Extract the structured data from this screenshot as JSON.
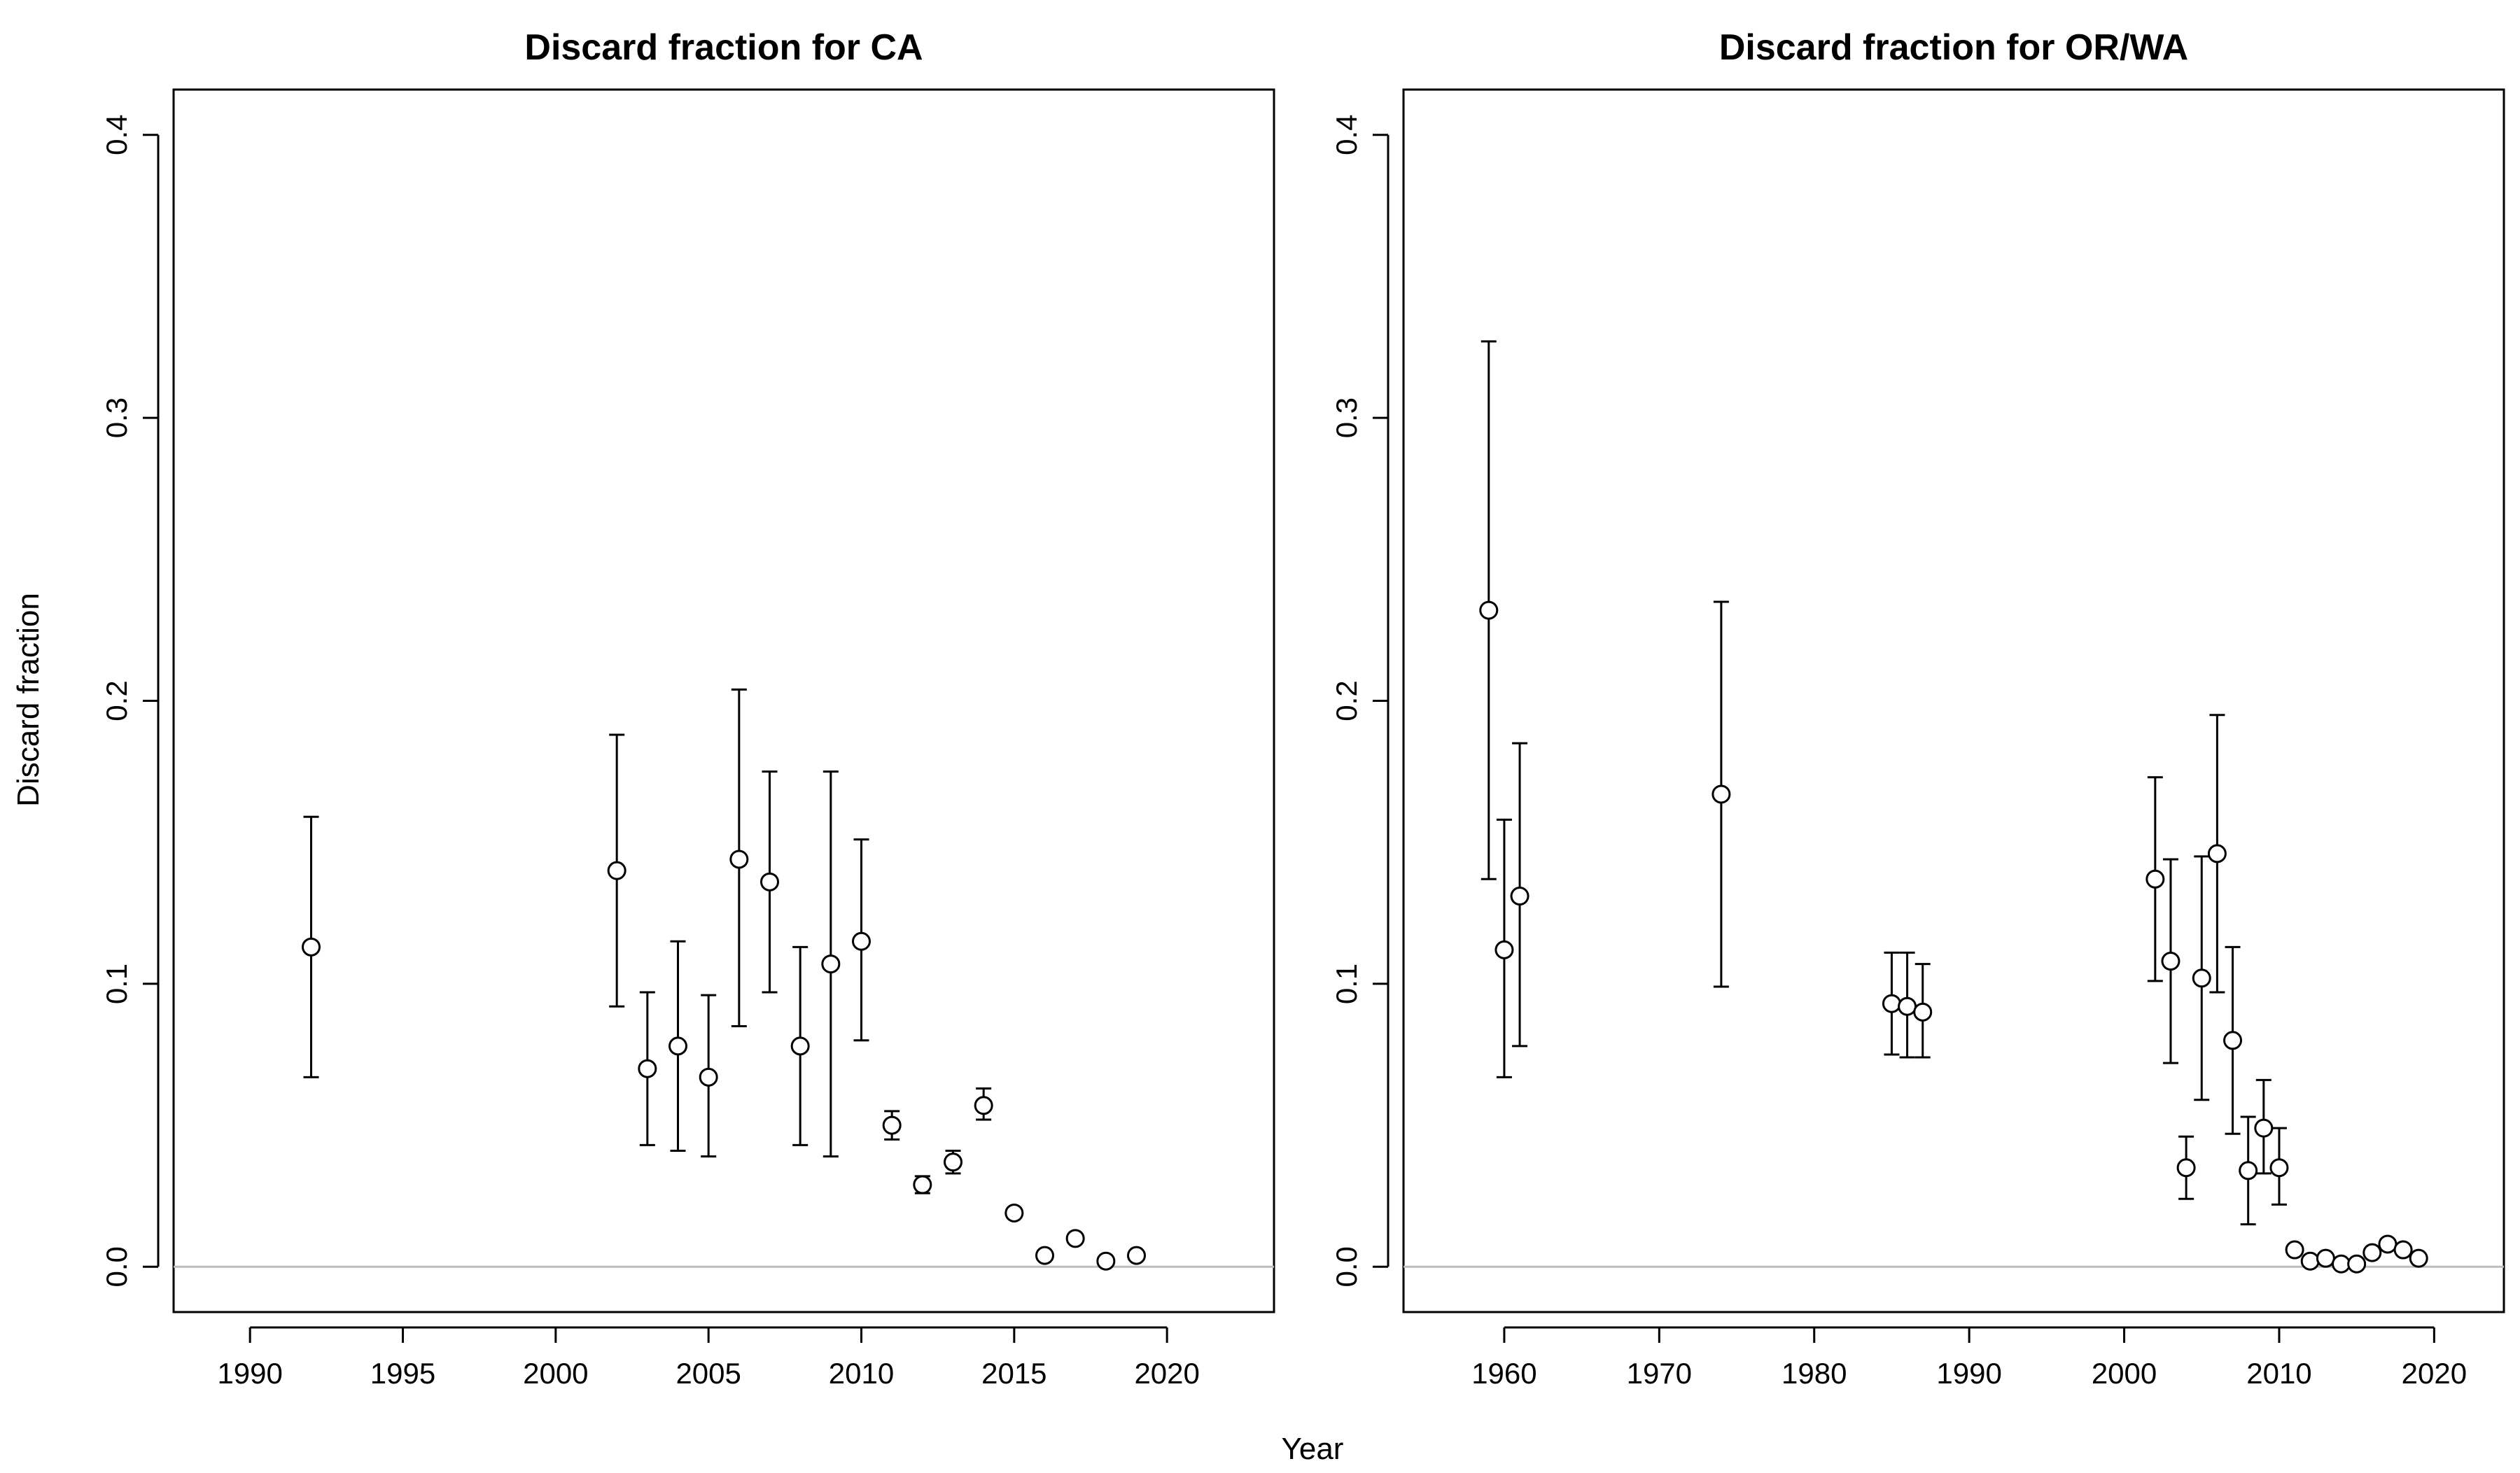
{
  "chart_data": [
    {
      "type": "scatter",
      "title": "Discard fraction for CA",
      "xlabel": "Year",
      "ylabel": "Discard fraction",
      "xlim": [
        1987.5,
        2023.5
      ],
      "ylim": [
        -0.016,
        0.416
      ],
      "xticks": [
        1990,
        1995,
        2000,
        2005,
        2010,
        2015,
        2020
      ],
      "xtick_labels": [
        "1990",
        "1995",
        "2000",
        "2005",
        "2010",
        "2015",
        "2020"
      ],
      "yticks": [
        0.0,
        0.1,
        0.2,
        0.3,
        0.4
      ],
      "ytick_labels": [
        "0.0",
        "0.1",
        "0.2",
        "0.3",
        "0.4"
      ],
      "reference_line_y": 0.0,
      "reference_line_color": "#bdbdbd",
      "grid": false,
      "marker": "open-circle",
      "error_bars": true,
      "points": [
        {
          "x": 1992,
          "y": 0.113,
          "lo": 0.067,
          "hi": 0.159
        },
        {
          "x": 2002,
          "y": 0.14,
          "lo": 0.092,
          "hi": 0.188
        },
        {
          "x": 2003,
          "y": 0.07,
          "lo": 0.043,
          "hi": 0.097
        },
        {
          "x": 2004,
          "y": 0.078,
          "lo": 0.041,
          "hi": 0.115
        },
        {
          "x": 2005,
          "y": 0.067,
          "lo": 0.039,
          "hi": 0.096
        },
        {
          "x": 2006,
          "y": 0.144,
          "lo": 0.085,
          "hi": 0.204
        },
        {
          "x": 2007,
          "y": 0.136,
          "lo": 0.097,
          "hi": 0.175
        },
        {
          "x": 2008,
          "y": 0.078,
          "lo": 0.043,
          "hi": 0.113
        },
        {
          "x": 2009,
          "y": 0.107,
          "lo": 0.039,
          "hi": 0.175
        },
        {
          "x": 2010,
          "y": 0.115,
          "lo": 0.08,
          "hi": 0.151
        },
        {
          "x": 2011,
          "y": 0.05,
          "lo": 0.045,
          "hi": 0.055
        },
        {
          "x": 2012,
          "y": 0.029,
          "lo": 0.026,
          "hi": 0.032
        },
        {
          "x": 2013,
          "y": 0.037,
          "lo": 0.033,
          "hi": 0.041
        },
        {
          "x": 2014,
          "y": 0.057,
          "lo": 0.052,
          "hi": 0.063
        },
        {
          "x": 2015,
          "y": 0.019
        },
        {
          "x": 2016,
          "y": 0.004
        },
        {
          "x": 2017,
          "y": 0.01
        },
        {
          "x": 2018,
          "y": 0.002
        },
        {
          "x": 2019,
          "y": 0.004
        }
      ]
    },
    {
      "type": "scatter",
      "title": "Discard fraction for OR/WA",
      "xlabel": "Year",
      "ylabel": "",
      "xlim": [
        1953.5,
        2024.5
      ],
      "ylim": [
        -0.016,
        0.416
      ],
      "xticks": [
        1960,
        1970,
        1980,
        1990,
        2000,
        2010,
        2020
      ],
      "xtick_labels": [
        "1960",
        "1970",
        "1980",
        "1990",
        "2000",
        "2010",
        "2020"
      ],
      "yticks": [
        0.0,
        0.1,
        0.2,
        0.3,
        0.4
      ],
      "ytick_labels": [
        "0.0",
        "0.1",
        "0.2",
        "0.3",
        "0.4"
      ],
      "reference_line_y": 0.0,
      "reference_line_color": "#bdbdbd",
      "grid": false,
      "marker": "open-circle",
      "error_bars": true,
      "points": [
        {
          "x": 1959,
          "y": 0.232,
          "lo": 0.137,
          "hi": 0.327
        },
        {
          "x": 1960,
          "y": 0.112,
          "lo": 0.067,
          "hi": 0.158
        },
        {
          "x": 1961,
          "y": 0.131,
          "lo": 0.078,
          "hi": 0.185
        },
        {
          "x": 1974,
          "y": 0.167,
          "lo": 0.099,
          "hi": 0.235
        },
        {
          "x": 1985,
          "y": 0.093,
          "lo": 0.075,
          "hi": 0.111
        },
        {
          "x": 1986,
          "y": 0.092,
          "lo": 0.074,
          "hi": 0.111
        },
        {
          "x": 1987,
          "y": 0.09,
          "lo": 0.074,
          "hi": 0.107
        },
        {
          "x": 2002,
          "y": 0.137,
          "lo": 0.101,
          "hi": 0.173
        },
        {
          "x": 2003,
          "y": 0.108,
          "lo": 0.072,
          "hi": 0.144
        },
        {
          "x": 2004,
          "y": 0.035,
          "lo": 0.024,
          "hi": 0.046
        },
        {
          "x": 2005,
          "y": 0.102,
          "lo": 0.059,
          "hi": 0.145
        },
        {
          "x": 2006,
          "y": 0.146,
          "lo": 0.097,
          "hi": 0.195
        },
        {
          "x": 2007,
          "y": 0.08,
          "lo": 0.047,
          "hi": 0.113
        },
        {
          "x": 2008,
          "y": 0.034,
          "lo": 0.015,
          "hi": 0.053
        },
        {
          "x": 2009,
          "y": 0.049,
          "lo": 0.033,
          "hi": 0.066
        },
        {
          "x": 2010,
          "y": 0.035,
          "lo": 0.022,
          "hi": 0.049
        },
        {
          "x": 2011,
          "y": 0.006
        },
        {
          "x": 2012,
          "y": 0.002
        },
        {
          "x": 2013,
          "y": 0.003
        },
        {
          "x": 2014,
          "y": 0.001
        },
        {
          "x": 2015,
          "y": 0.001
        },
        {
          "x": 2016,
          "y": 0.005
        },
        {
          "x": 2017,
          "y": 0.008
        },
        {
          "x": 2018,
          "y": 0.006
        },
        {
          "x": 2019,
          "y": 0.003
        }
      ]
    }
  ]
}
